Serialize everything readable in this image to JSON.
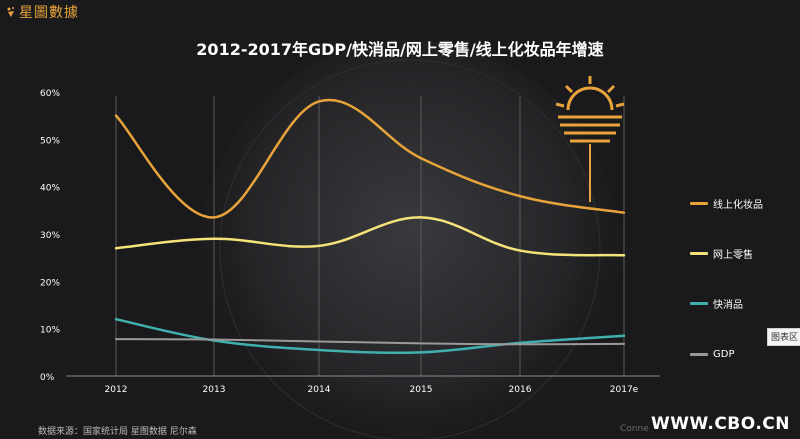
{
  "brand": {
    "logo_text": "星圖數據"
  },
  "source_text": "数据来源：国家统计局 星图数据 尼尔森",
  "partial_text": "Conne",
  "watermark_text": "WWW.CBO.CN",
  "tooltip_text": "图表区",
  "colors": {
    "background": "#1a1a1c",
    "cosmetics": "#e8a33a",
    "online_retail": "#f5e27a",
    "fmcg": "#3fb0ae",
    "gdp": "#9a9a9a",
    "grid": "#5a5a5a"
  },
  "chart_data": {
    "type": "line",
    "title": "2012-2017年GDP/快消品/网上零售/线上化妆品年增速",
    "x": [
      "2012",
      "2013",
      "2014",
      "2015",
      "2016",
      "2017e"
    ],
    "y_ticks": [
      "0%",
      "10%",
      "20%",
      "30%",
      "40%",
      "50%",
      "60%"
    ],
    "ylim": [
      0,
      60
    ],
    "y_unit": "%",
    "grid": "vertical",
    "legend_position": "right",
    "series": [
      {
        "name": "线上化妆品",
        "color": "#e8a33a",
        "values": [
          55,
          33.5,
          58,
          46,
          38,
          34.5
        ]
      },
      {
        "name": "网上零售",
        "color": "#f5e27a",
        "values": [
          27,
          29,
          27.5,
          33.5,
          26.5,
          25.5
        ]
      },
      {
        "name": "快消品",
        "color": "#3fb0ae",
        "values": [
          12,
          7.5,
          5.5,
          5,
          7,
          8.5
        ]
      },
      {
        "name": "GDP",
        "color": "#9a9a9a",
        "values": [
          7.8,
          7.7,
          7.3,
          6.9,
          6.7,
          6.8
        ]
      }
    ]
  }
}
